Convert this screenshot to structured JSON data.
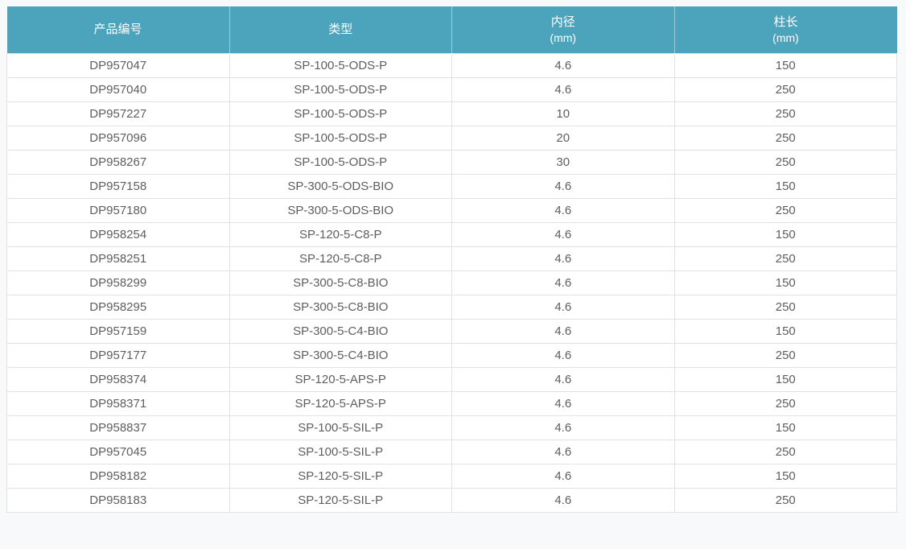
{
  "table": {
    "colors": {
      "header_bg": "#4ba4bc",
      "header_text": "#ffffff",
      "row_bg": "#ffffff",
      "grid_border": "#e2e2e2",
      "cell_text": "#5e5e5e",
      "page_bg": "#f8f9fa"
    },
    "headers": [
      {
        "label": "产品编号",
        "sub": ""
      },
      {
        "label": "类型",
        "sub": ""
      },
      {
        "label": "内径",
        "sub": "(mm)"
      },
      {
        "label": "柱长",
        "sub": "(mm)"
      }
    ],
    "rows": [
      [
        "DP957047",
        "SP-100-5-ODS-P",
        "4.6",
        "150"
      ],
      [
        "DP957040",
        "SP-100-5-ODS-P",
        "4.6",
        "250"
      ],
      [
        "DP957227",
        "SP-100-5-ODS-P",
        "10",
        "250"
      ],
      [
        "DP957096",
        "SP-100-5-ODS-P",
        "20",
        "250"
      ],
      [
        "DP958267",
        "SP-100-5-ODS-P",
        "30",
        "250"
      ],
      [
        "DP957158",
        "SP-300-5-ODS-BIO",
        "4.6",
        "150"
      ],
      [
        "DP957180",
        "SP-300-5-ODS-BIO",
        "4.6",
        "250"
      ],
      [
        "DP958254",
        "SP-120-5-C8-P",
        "4.6",
        "150"
      ],
      [
        "DP958251",
        "SP-120-5-C8-P",
        "4.6",
        "250"
      ],
      [
        "DP958299",
        "SP-300-5-C8-BIO",
        "4.6",
        "150"
      ],
      [
        "DP958295",
        "SP-300-5-C8-BIO",
        "4.6",
        "250"
      ],
      [
        "DP957159",
        "SP-300-5-C4-BIO",
        "4.6",
        "150"
      ],
      [
        "DP957177",
        "SP-300-5-C4-BIO",
        "4.6",
        "250"
      ],
      [
        "DP958374",
        "SP-120-5-APS-P",
        "4.6",
        "150"
      ],
      [
        "DP958371",
        "SP-120-5-APS-P",
        "4.6",
        "250"
      ],
      [
        "DP958837",
        "SP-100-5-SIL-P",
        "4.6",
        "150"
      ],
      [
        "DP957045",
        "SP-100-5-SIL-P",
        "4.6",
        "250"
      ],
      [
        "DP958182",
        "SP-120-5-SIL-P",
        "4.6",
        "150"
      ],
      [
        "DP958183",
        "SP-120-5-SIL-P",
        "4.6",
        "250"
      ]
    ]
  }
}
